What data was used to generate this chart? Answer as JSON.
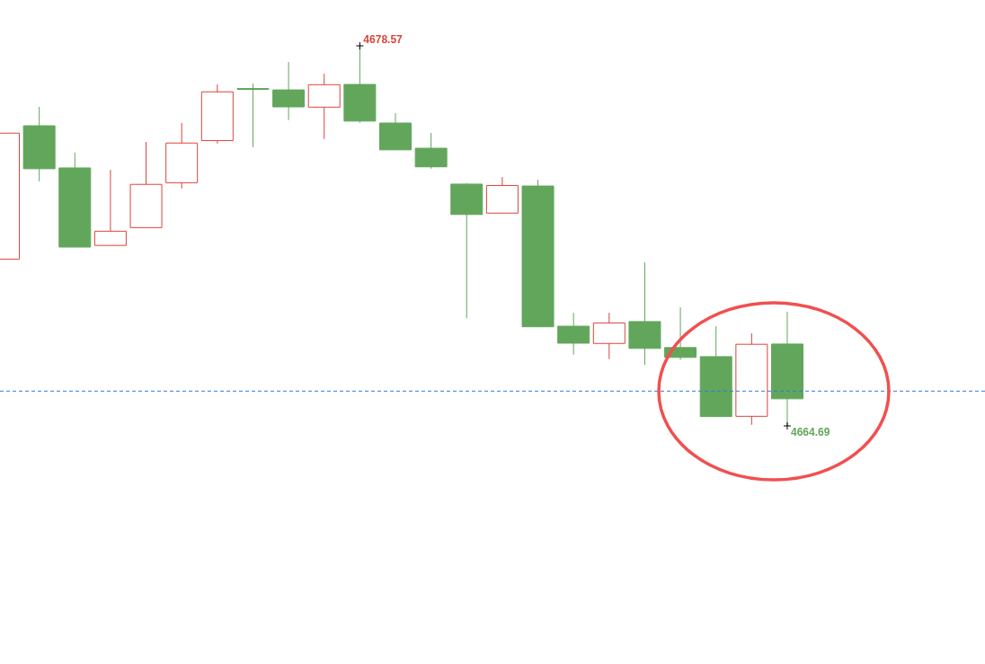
{
  "chart_data": {
    "type": "candlestick",
    "categories": [
      null,
      null,
      null,
      null,
      null,
      null,
      null,
      null,
      null,
      null,
      null,
      null,
      null,
      null,
      null,
      null,
      null,
      null,
      null,
      null,
      null,
      null,
      null
    ],
    "ohlc": [
      [
        4670.78,
        4675.38,
        4670.78,
        4675.38
      ],
      [
        4675.65,
        4676.34,
        4673.62,
        4674.08
      ],
      [
        4674.11,
        4674.67,
        4671.22,
        4671.22
      ],
      [
        4671.28,
        4674.04,
        4671.28,
        4671.8
      ],
      [
        4671.93,
        4675.06,
        4671.93,
        4673.51
      ],
      [
        4673.57,
        4675.75,
        4673.36,
        4675.02
      ],
      [
        4675.11,
        4677.16,
        4675.0,
        4676.89
      ],
      [
        4677.01,
        4677.19,
        4674.87,
        4676.98
      ],
      [
        4676.96,
        4677.98,
        4675.86,
        4676.34
      ],
      [
        4676.33,
        4677.55,
        4675.17,
        4677.15
      ],
      [
        4677.16,
        4678.57,
        4675.76,
        4675.82
      ],
      [
        4675.75,
        4676.11,
        4674.77,
        4674.77
      ],
      [
        4674.83,
        4675.39,
        4674.08,
        4674.15
      ],
      [
        4673.52,
        4673.55,
        4668.62,
        4672.41
      ],
      [
        4672.46,
        4673.78,
        4672.46,
        4673.47
      ],
      [
        4673.45,
        4673.68,
        4668.31,
        4668.31
      ],
      [
        4668.33,
        4668.82,
        4667.29,
        4667.71
      ],
      [
        4667.7,
        4668.82,
        4667.13,
        4668.45
      ],
      [
        4668.5,
        4670.66,
        4666.92,
        4667.52
      ],
      [
        4667.55,
        4669.02,
        4667.1,
        4667.19
      ],
      [
        4667.22,
        4668.33,
        4665.03,
        4665.03
      ],
      [
        4665.04,
        4668.07,
        4664.73,
        4667.67
      ],
      [
        4667.68,
        4668.86,
        4664.69,
        4665.68
      ]
    ],
    "colors": [
      "#d9453c",
      "#62a65c",
      "#62a65c",
      "#d9453c",
      "#d9453c",
      "#d9453c",
      "#d9453c",
      "#62a65c",
      "#62a65c",
      "#d9453c",
      "#62a65c",
      "#62a65c",
      "#62a65c",
      "#62a65c",
      "#d9453c",
      "#62a65c",
      "#62a65c",
      "#d9453c",
      "#62a65c",
      "#62a65c",
      "#62a65c",
      "#d9453c",
      "#62a65c"
    ],
    "annotations": [
      "4678.57",
      "4664.69"
    ],
    "ref_lines": [
      {
        "axis": "y",
        "value": 4665.96,
        "color": "#2b7fd6",
        "line_style": "dashed"
      }
    ]
  }
}
